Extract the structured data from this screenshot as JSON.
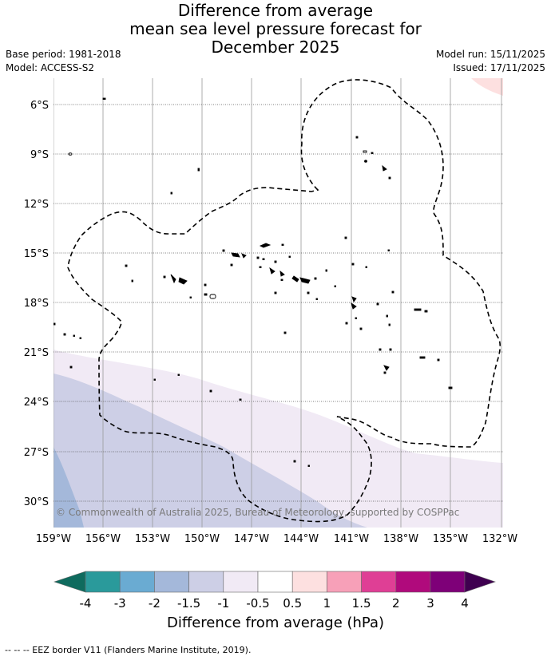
{
  "title": {
    "line1": "Difference from average",
    "line2": "mean sea level pressure forecast for",
    "line3": "December 2025"
  },
  "meta_left": {
    "base_period": "Base period: 1981-2018",
    "model": "Model: ACCESS-S2"
  },
  "meta_right": {
    "model_run": "Model run: 15/11/2025",
    "issued": "Issued: 17/11/2025"
  },
  "map": {
    "lat_labels": [
      "6°S",
      "9°S",
      "12°S",
      "15°S",
      "18°S",
      "21°S",
      "24°S",
      "27°S",
      "30°S"
    ],
    "lon_labels": [
      "159°W",
      "156°W",
      "153°W",
      "150°W",
      "147°W",
      "144°W",
      "141°W",
      "138°W",
      "135°W",
      "132°W"
    ],
    "copyright": "© Commonwealth of Australia 2025, Bureau of Meteorology, supported by COSPPac"
  },
  "colorbar": {
    "title": "Difference from average (hPa)",
    "ticks": [
      "-4",
      "-3",
      "-2",
      "-1.5",
      "-1",
      "-0.5",
      "0.5",
      "1",
      "1.5",
      "2",
      "3",
      "4"
    ],
    "colors": {
      "below_min": "#0f6b5e",
      "b1": "#2a9a9b",
      "b2": "#6aabd2",
      "b3": "#a4b8da",
      "b4": "#cdcfe6",
      "b5": "#f1eaf5",
      "b6": "#ffffff",
      "b7": "#fde0e0",
      "b8": "#f7a0b8",
      "b9": "#df3f95",
      "b10": "#b00a7c",
      "b11": "#7e0078",
      "above_max": "#3f0050"
    }
  },
  "footer": "-- -- -- EEZ border V11 (Flanders Marine Institute, 2019)."
}
